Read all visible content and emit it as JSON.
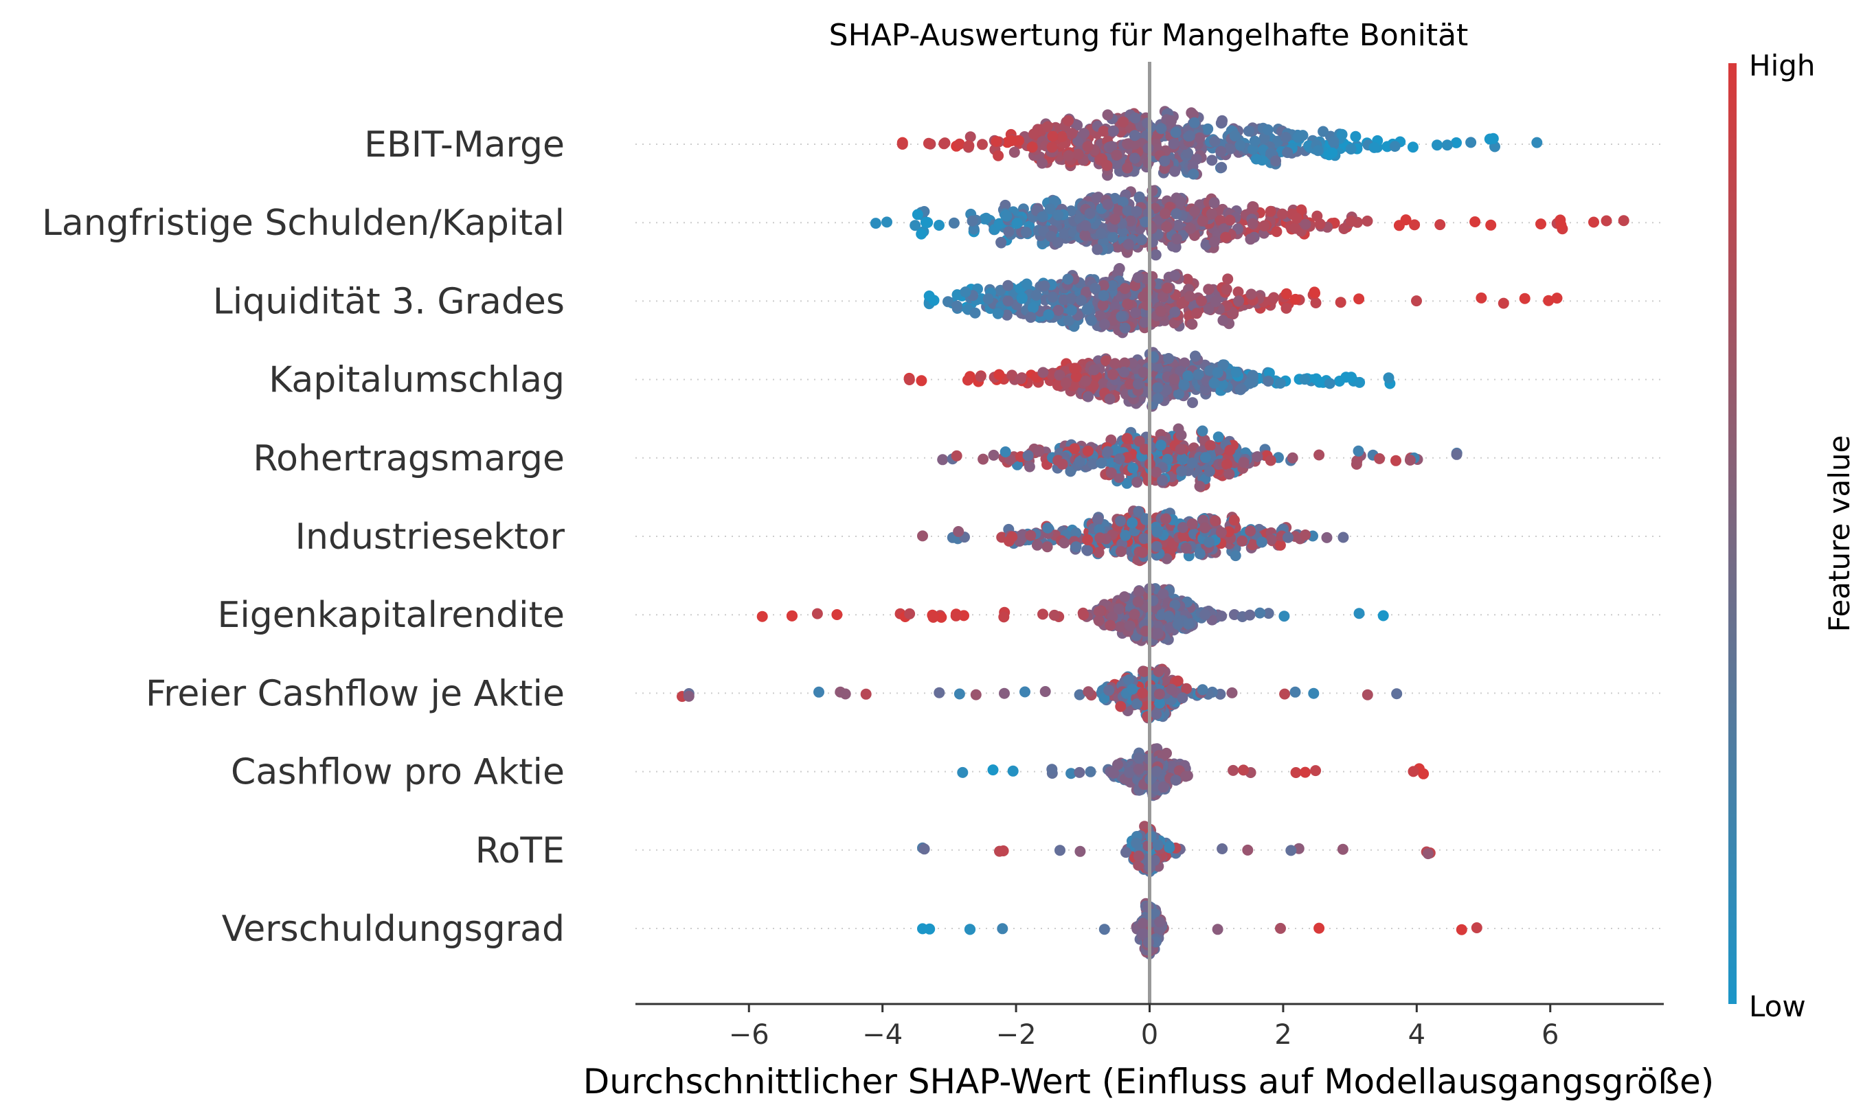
{
  "chart_data": {
    "type": "scatter",
    "subtype": "shap-beeswarm",
    "title": "SHAP-Auswertung für Mangelhafte Bonität",
    "xlabel": "Durchschnittlicher SHAP-Wert (Einfluss auf Modellausgangsgröße)",
    "xlim": [
      -7.7,
      7.7
    ],
    "xticks": [
      -6,
      -4,
      -2,
      0,
      2,
      4,
      6
    ],
    "xtick_labels": [
      "−6",
      "−4",
      "−2",
      "0",
      "2",
      "4",
      "6"
    ],
    "grid": false,
    "colorbar": {
      "label": "Feature value",
      "high_label": "High",
      "low_label": "Low",
      "high_color": "#d83a3a",
      "low_color": "#1b96c8"
    },
    "features": [
      {
        "name": "EBIT-Marge",
        "min": -3.7,
        "max": 5.8,
        "center": 0.2,
        "sd": 1.3,
        "width": 1.0,
        "n": 520,
        "corr": "negative"
      },
      {
        "name": "Langfristige Schulden/Kapital",
        "min": -4.1,
        "max": 7.1,
        "center": -0.1,
        "sd": 1.4,
        "width": 1.0,
        "n": 520,
        "corr": "positive"
      },
      {
        "name": "Liquidität 3. Grades",
        "min": -3.3,
        "max": 6.1,
        "center": -0.4,
        "sd": 1.2,
        "width": 0.95,
        "n": 480,
        "corr": "positive"
      },
      {
        "name": "Kapitalumschlag",
        "min": -3.6,
        "max": 3.6,
        "center": 0.0,
        "sd": 1.0,
        "width": 0.85,
        "n": 420,
        "corr": "negative"
      },
      {
        "name": "Rohertragsmarge",
        "min": -3.1,
        "max": 4.6,
        "center": 0.0,
        "sd": 0.9,
        "width": 0.85,
        "n": 400,
        "corr": "mixed"
      },
      {
        "name": "Industriesektor",
        "min": -3.4,
        "max": 2.9,
        "center": 0.2,
        "sd": 0.9,
        "width": 0.85,
        "n": 420,
        "corr": "mixed"
      },
      {
        "name": "Eigenkapitalrendite",
        "min": -5.8,
        "max": 3.5,
        "center": 0.0,
        "sd": 0.45,
        "width": 0.8,
        "n": 320,
        "corr": "negative"
      },
      {
        "name": "Freier Cashflow je Aktie",
        "min": -7.0,
        "max": 3.7,
        "center": 0.0,
        "sd": 0.35,
        "width": 0.75,
        "n": 260,
        "corr": "mixed"
      },
      {
        "name": "Cashflow pro Aktie",
        "min": -2.8,
        "max": 4.1,
        "center": 0.0,
        "sd": 0.25,
        "width": 0.7,
        "n": 220,
        "corr": "positive"
      },
      {
        "name": "RoTE",
        "min": -3.4,
        "max": 4.2,
        "center": 0.0,
        "sd": 0.15,
        "width": 0.7,
        "n": 160,
        "corr": "mixed"
      },
      {
        "name": "Verschuldungsgrad",
        "min": -3.4,
        "max": 4.9,
        "center": 0.0,
        "sd": 0.08,
        "width": 0.75,
        "n": 150,
        "corr": "positive"
      }
    ]
  }
}
